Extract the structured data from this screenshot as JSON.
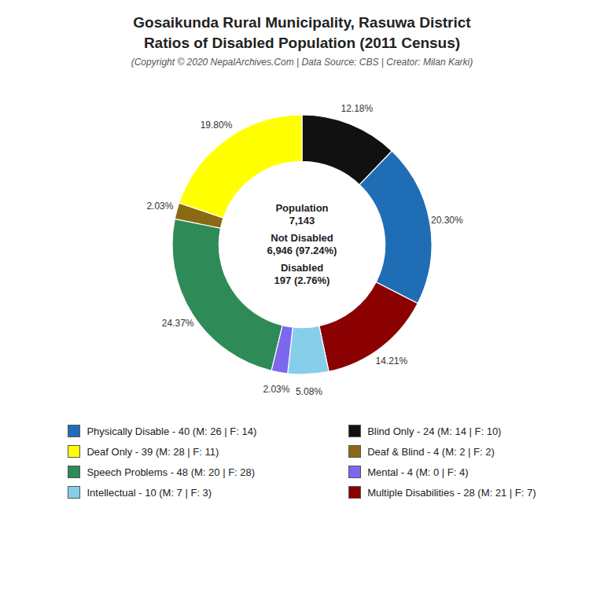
{
  "chart_data": {
    "type": "donut",
    "title": [
      "Gosaikunda Rural Municipality, Rasuwa District",
      "Ratios of Disabled Population (2011 Census)"
    ],
    "subtitle": "(Copyright © 2020 NepalArchives.Com | Data Source: CBS | Creator: Milan Karki)",
    "values": [
      12.18,
      20.3,
      14.21,
      5.08,
      2.03,
      24.37,
      2.03,
      19.8
    ],
    "value_labels": [
      "12.18%",
      "20.30%",
      "14.21%",
      "5.08%",
      "2.03%",
      "24.37%",
      "2.03%",
      "19.80%"
    ],
    "colors": [
      "#111111",
      "#1f6eb5",
      "#8b0000",
      "#87ceeb",
      "#7b68ee",
      "#2e8b57",
      "#8b6914",
      "#ffff00"
    ],
    "data_labels": true,
    "annotations": [
      "Population",
      "7,143",
      "Not Disabled",
      "6,946 (97.24%)",
      "Disabled",
      "197 (2.76%)"
    ],
    "legend": "bottom",
    "legend_items": [
      {
        "label": "Physically Disable - 40 (M: 26 | F: 14)",
        "color": "#1f6eb5"
      },
      {
        "label": "Deaf Only - 39 (M: 28 | F: 11)",
        "color": "#ffff00"
      },
      {
        "label": "Speech Problems - 48 (M: 20 | F: 28)",
        "color": "#2e8b57"
      },
      {
        "label": "Intellectual - 10 (M: 7 | F: 3)",
        "color": "#87ceeb"
      },
      {
        "label": "Blind Only - 24 (M: 14 | F: 10)",
        "color": "#111111"
      },
      {
        "label": "Deaf & Blind - 4 (M: 2 | F: 2)",
        "color": "#8b6914"
      },
      {
        "label": "Mental - 4 (M: 0 | F: 4)",
        "color": "#7b68ee"
      },
      {
        "label": "Multiple Disabilities - 28 (M: 21 | F: 7)",
        "color": "#8b0000"
      }
    ]
  }
}
